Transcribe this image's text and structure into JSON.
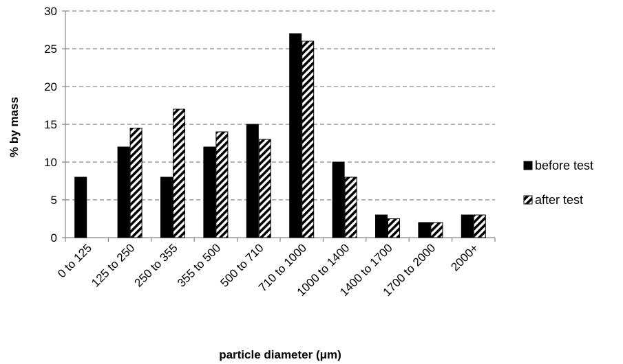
{
  "chart_data": {
    "type": "bar",
    "categories": [
      "0 to 125",
      "125 to 250",
      "250 to 355",
      "355 to 500",
      "500 to 710",
      "710 to 1000",
      "1000 to 1400",
      "1400 to 1700",
      "1700 to 2000",
      "2000+"
    ],
    "series": [
      {
        "name": "before test",
        "values": [
          8,
          12,
          8,
          12,
          15,
          27,
          10,
          3,
          2,
          3
        ],
        "pattern": "solid",
        "color": "#000000"
      },
      {
        "name": "after test",
        "values": [
          0,
          14.5,
          17,
          14,
          13,
          26,
          8,
          2.5,
          2,
          3
        ],
        "pattern": "diagonal-stripes",
        "color": "#000000"
      }
    ],
    "xlabel": "particle diameter (μm)",
    "ylabel": "% by mass",
    "ylim": [
      0,
      30
    ],
    "yticks": [
      0,
      5,
      10,
      15,
      20,
      25,
      30
    ],
    "grid": true,
    "legend_position": "right"
  }
}
